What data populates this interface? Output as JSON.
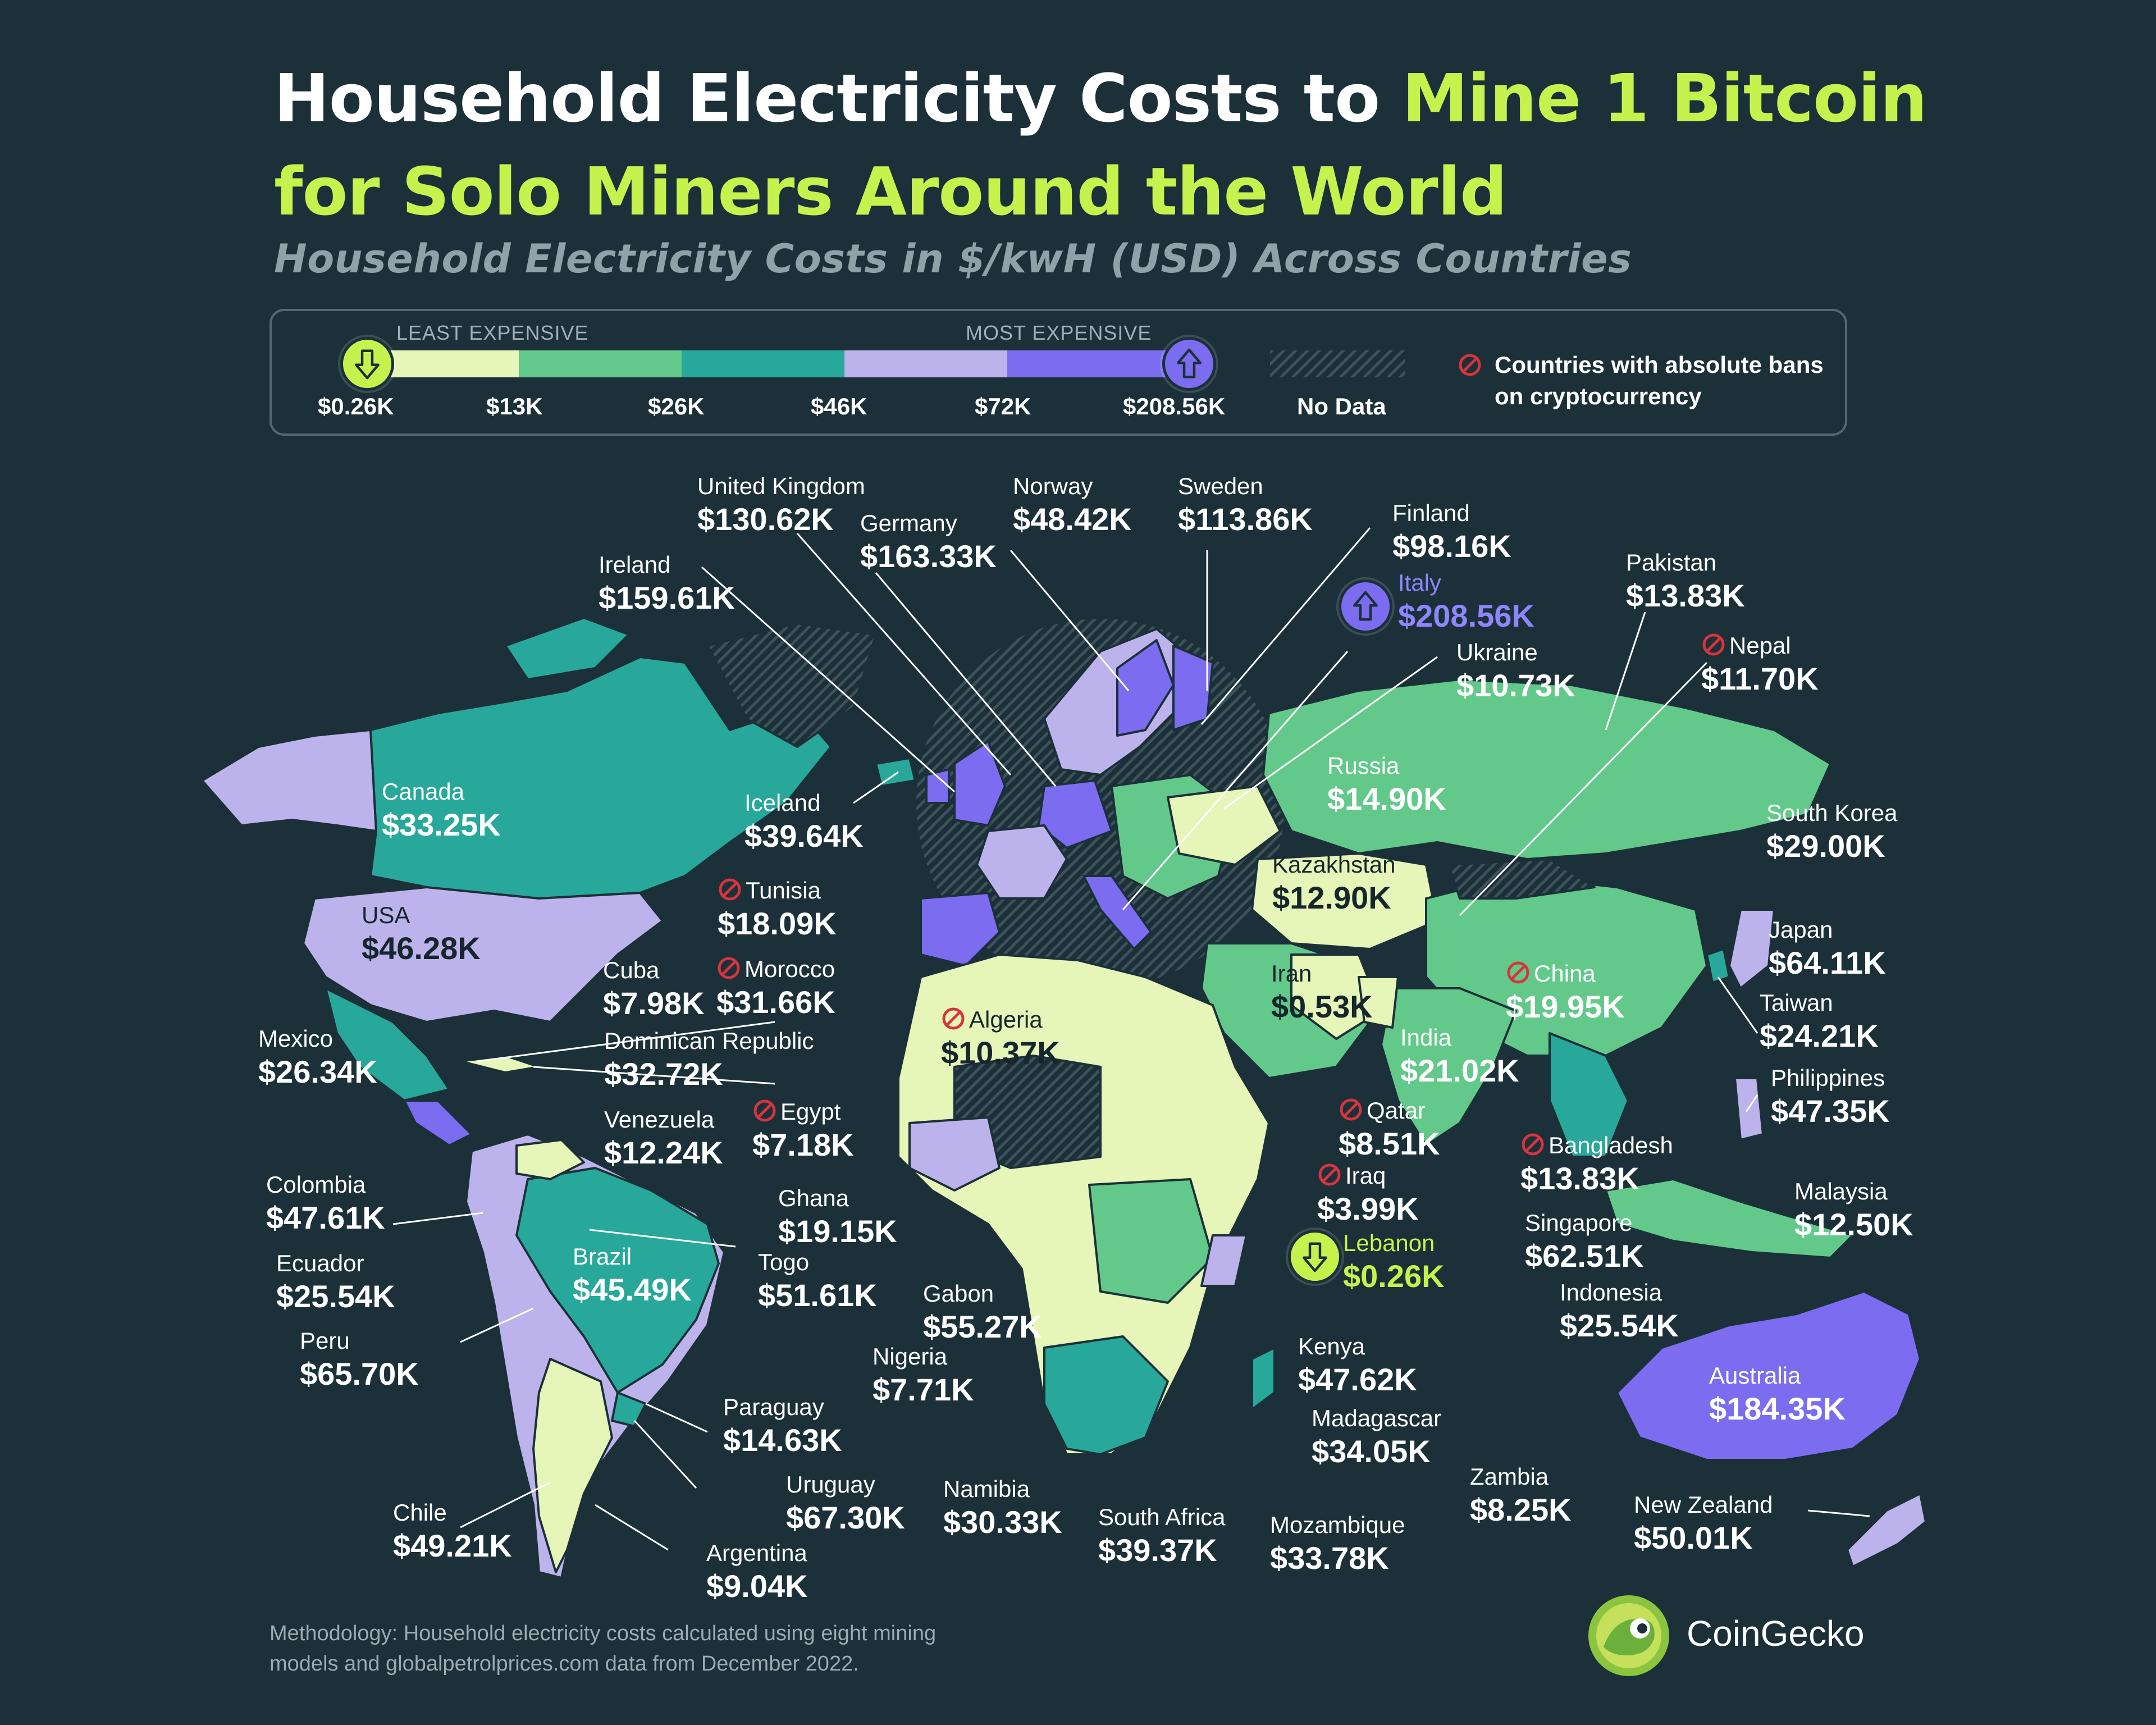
{
  "title": {
    "line1_plain": "Household Electricity Costs to ",
    "line1_accent": "Mine 1 Bitcoin",
    "line2_accent": "for Solo Miners Around the World"
  },
  "subtitle": "Household Electricity Costs in $/kwH (USD) Across Countries",
  "colors": {
    "background": "#1b3038",
    "accent": "#c6f24e",
    "scale": [
      "#e6f5b8",
      "#62c98a",
      "#27a89a",
      "#bdb3ec",
      "#7b6cf0"
    ],
    "no_data": "#3e525a",
    "ban": "#d6343f"
  },
  "legend": {
    "least_label": "LEAST EXPENSIVE",
    "most_label": "MOST EXPENSIVE",
    "ticks": [
      "$0.26K",
      "$13K",
      "$26K",
      "$46K",
      "$72K",
      "$208.56K"
    ],
    "no_data_label": "No Data",
    "ban_label_1": "Countries with absolute bans",
    "ban_label_2": "on cryptocurrency",
    "least_icon": "arrow-down-icon",
    "most_icon": "arrow-up-icon",
    "ban_icon": "prohibited-icon"
  },
  "countries": [
    {
      "name": "United Kingdom",
      "value": "$130.62K"
    },
    {
      "name": "Norway",
      "value": "$48.42K"
    },
    {
      "name": "Sweden",
      "value": "$113.86K"
    },
    {
      "name": "Germany",
      "value": "$163.33K"
    },
    {
      "name": "Finland",
      "value": "$98.16K"
    },
    {
      "name": "Ireland",
      "value": "$159.61K"
    },
    {
      "name": "Italy",
      "value": "$208.56K"
    },
    {
      "name": "Pakistan",
      "value": "$13.83K"
    },
    {
      "name": "Nepal",
      "value": "$11.70K",
      "banned": true
    },
    {
      "name": "Ukraine",
      "value": "$10.73K"
    },
    {
      "name": "Canada",
      "value": "$33.25K"
    },
    {
      "name": "Iceland",
      "value": "$39.64K"
    },
    {
      "name": "Russia",
      "value": "$14.90K"
    },
    {
      "name": "South Korea",
      "value": "$29.00K"
    },
    {
      "name": "Tunisia",
      "value": "$18.09K",
      "banned": true
    },
    {
      "name": "Kazakhstan",
      "value": "$12.90K"
    },
    {
      "name": "USA",
      "value": "$46.28K"
    },
    {
      "name": "Japan",
      "value": "$64.11K"
    },
    {
      "name": "Cuba",
      "value": "$7.98K"
    },
    {
      "name": "Morocco",
      "value": "$31.66K",
      "banned": true
    },
    {
      "name": "Iran",
      "value": "$0.53K"
    },
    {
      "name": "China",
      "value": "$19.95K",
      "banned": true
    },
    {
      "name": "Taiwan",
      "value": "$24.21K"
    },
    {
      "name": "Algeria",
      "value": "$10.37K",
      "banned": true
    },
    {
      "name": "Mexico",
      "value": "$26.34K"
    },
    {
      "name": "Dominican Republic",
      "value": "$32.72K"
    },
    {
      "name": "India",
      "value": "$21.02K"
    },
    {
      "name": "Philippines",
      "value": "$47.35K"
    },
    {
      "name": "Egypt",
      "value": "$7.18K",
      "banned": true
    },
    {
      "name": "Qatar",
      "value": "$8.51K",
      "banned": true
    },
    {
      "name": "Venezuela",
      "value": "$12.24K"
    },
    {
      "name": "Bangladesh",
      "value": "$13.83K",
      "banned": true
    },
    {
      "name": "Colombia",
      "value": "$47.61K"
    },
    {
      "name": "Iraq",
      "value": "$3.99K",
      "banned": true
    },
    {
      "name": "Ghana",
      "value": "$19.15K"
    },
    {
      "name": "Malaysia",
      "value": "$12.50K"
    },
    {
      "name": "Singapore",
      "value": "$62.51K"
    },
    {
      "name": "Ecuador",
      "value": "$25.54K"
    },
    {
      "name": "Lebanon",
      "value": "$0.26K"
    },
    {
      "name": "Togo",
      "value": "$51.61K"
    },
    {
      "name": "Brazil",
      "value": "$45.49K"
    },
    {
      "name": "Gabon",
      "value": "$55.27K"
    },
    {
      "name": "Indonesia",
      "value": "$25.54K"
    },
    {
      "name": "Peru",
      "value": "$65.70K"
    },
    {
      "name": "Kenya",
      "value": "$47.62K"
    },
    {
      "name": "Nigeria",
      "value": "$7.71K"
    },
    {
      "name": "Australia",
      "value": "$184.35K"
    },
    {
      "name": "Paraguay",
      "value": "$14.63K"
    },
    {
      "name": "Madagascar",
      "value": "$34.05K"
    },
    {
      "name": "Uruguay",
      "value": "$67.30K"
    },
    {
      "name": "Namibia",
      "value": "$30.33K"
    },
    {
      "name": "Zambia",
      "value": "$8.25K"
    },
    {
      "name": "Chile",
      "value": "$49.21K"
    },
    {
      "name": "South Africa",
      "value": "$39.37K"
    },
    {
      "name": "Mozambique",
      "value": "$33.78K"
    },
    {
      "name": "New Zealand",
      "value": "$50.01K"
    },
    {
      "name": "Argentina",
      "value": "$9.04K"
    }
  ],
  "footer": {
    "line1": "Methodology: Household electricity costs calculated using eight mining",
    "line2": "models and globalpetrolprices.com data from December 2022."
  },
  "brand": {
    "name": "CoinGecko",
    "logo_icon": "gecko-logo-icon"
  }
}
